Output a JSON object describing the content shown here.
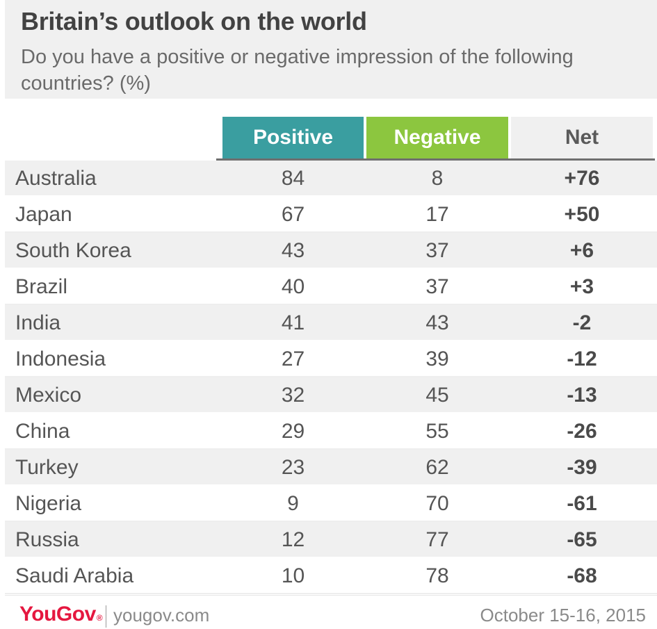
{
  "title": "Britain’s outlook on the world",
  "subtitle": "Do you have a positive or negative impression of the following countries? (%)",
  "colors": {
    "positive_header": "#3a9ea0",
    "negative_header": "#8cc63f",
    "net_header": "#f0f0f0",
    "brand_red": "#e5173f"
  },
  "chart_data": {
    "type": "table",
    "columns": [
      "Positive",
      "Negative",
      "Net"
    ],
    "rows": [
      {
        "country": "Australia",
        "positive": "84",
        "negative": "8",
        "net": "+76"
      },
      {
        "country": "Japan",
        "positive": "67",
        "negative": "17",
        "net": "+50"
      },
      {
        "country": "South Korea",
        "positive": "43",
        "negative": "37",
        "net": "+6"
      },
      {
        "country": "Brazil",
        "positive": "40",
        "negative": "37",
        "net": "+3"
      },
      {
        "country": "India",
        "positive": "41",
        "negative": "43",
        "net": "-2"
      },
      {
        "country": "Indonesia",
        "positive": "27",
        "negative": "39",
        "net": "-12"
      },
      {
        "country": "Mexico",
        "positive": "32",
        "negative": "45",
        "net": "-13"
      },
      {
        "country": "China",
        "positive": "29",
        "negative": "55",
        "net": "-26"
      },
      {
        "country": "Turkey",
        "positive": "23",
        "negative": "62",
        "net": "-39"
      },
      {
        "country": "Nigeria",
        "positive": "9",
        "negative": "70",
        "net": "-61"
      },
      {
        "country": "Russia",
        "positive": "12",
        "negative": "77",
        "net": "-65"
      },
      {
        "country": "Saudi Arabia",
        "positive": "10",
        "negative": "78",
        "net": "-68"
      }
    ]
  },
  "footer": {
    "brand": "YouGov",
    "brand_mark": "®",
    "site": "yougov.com",
    "date": "October 15-16, 2015"
  }
}
